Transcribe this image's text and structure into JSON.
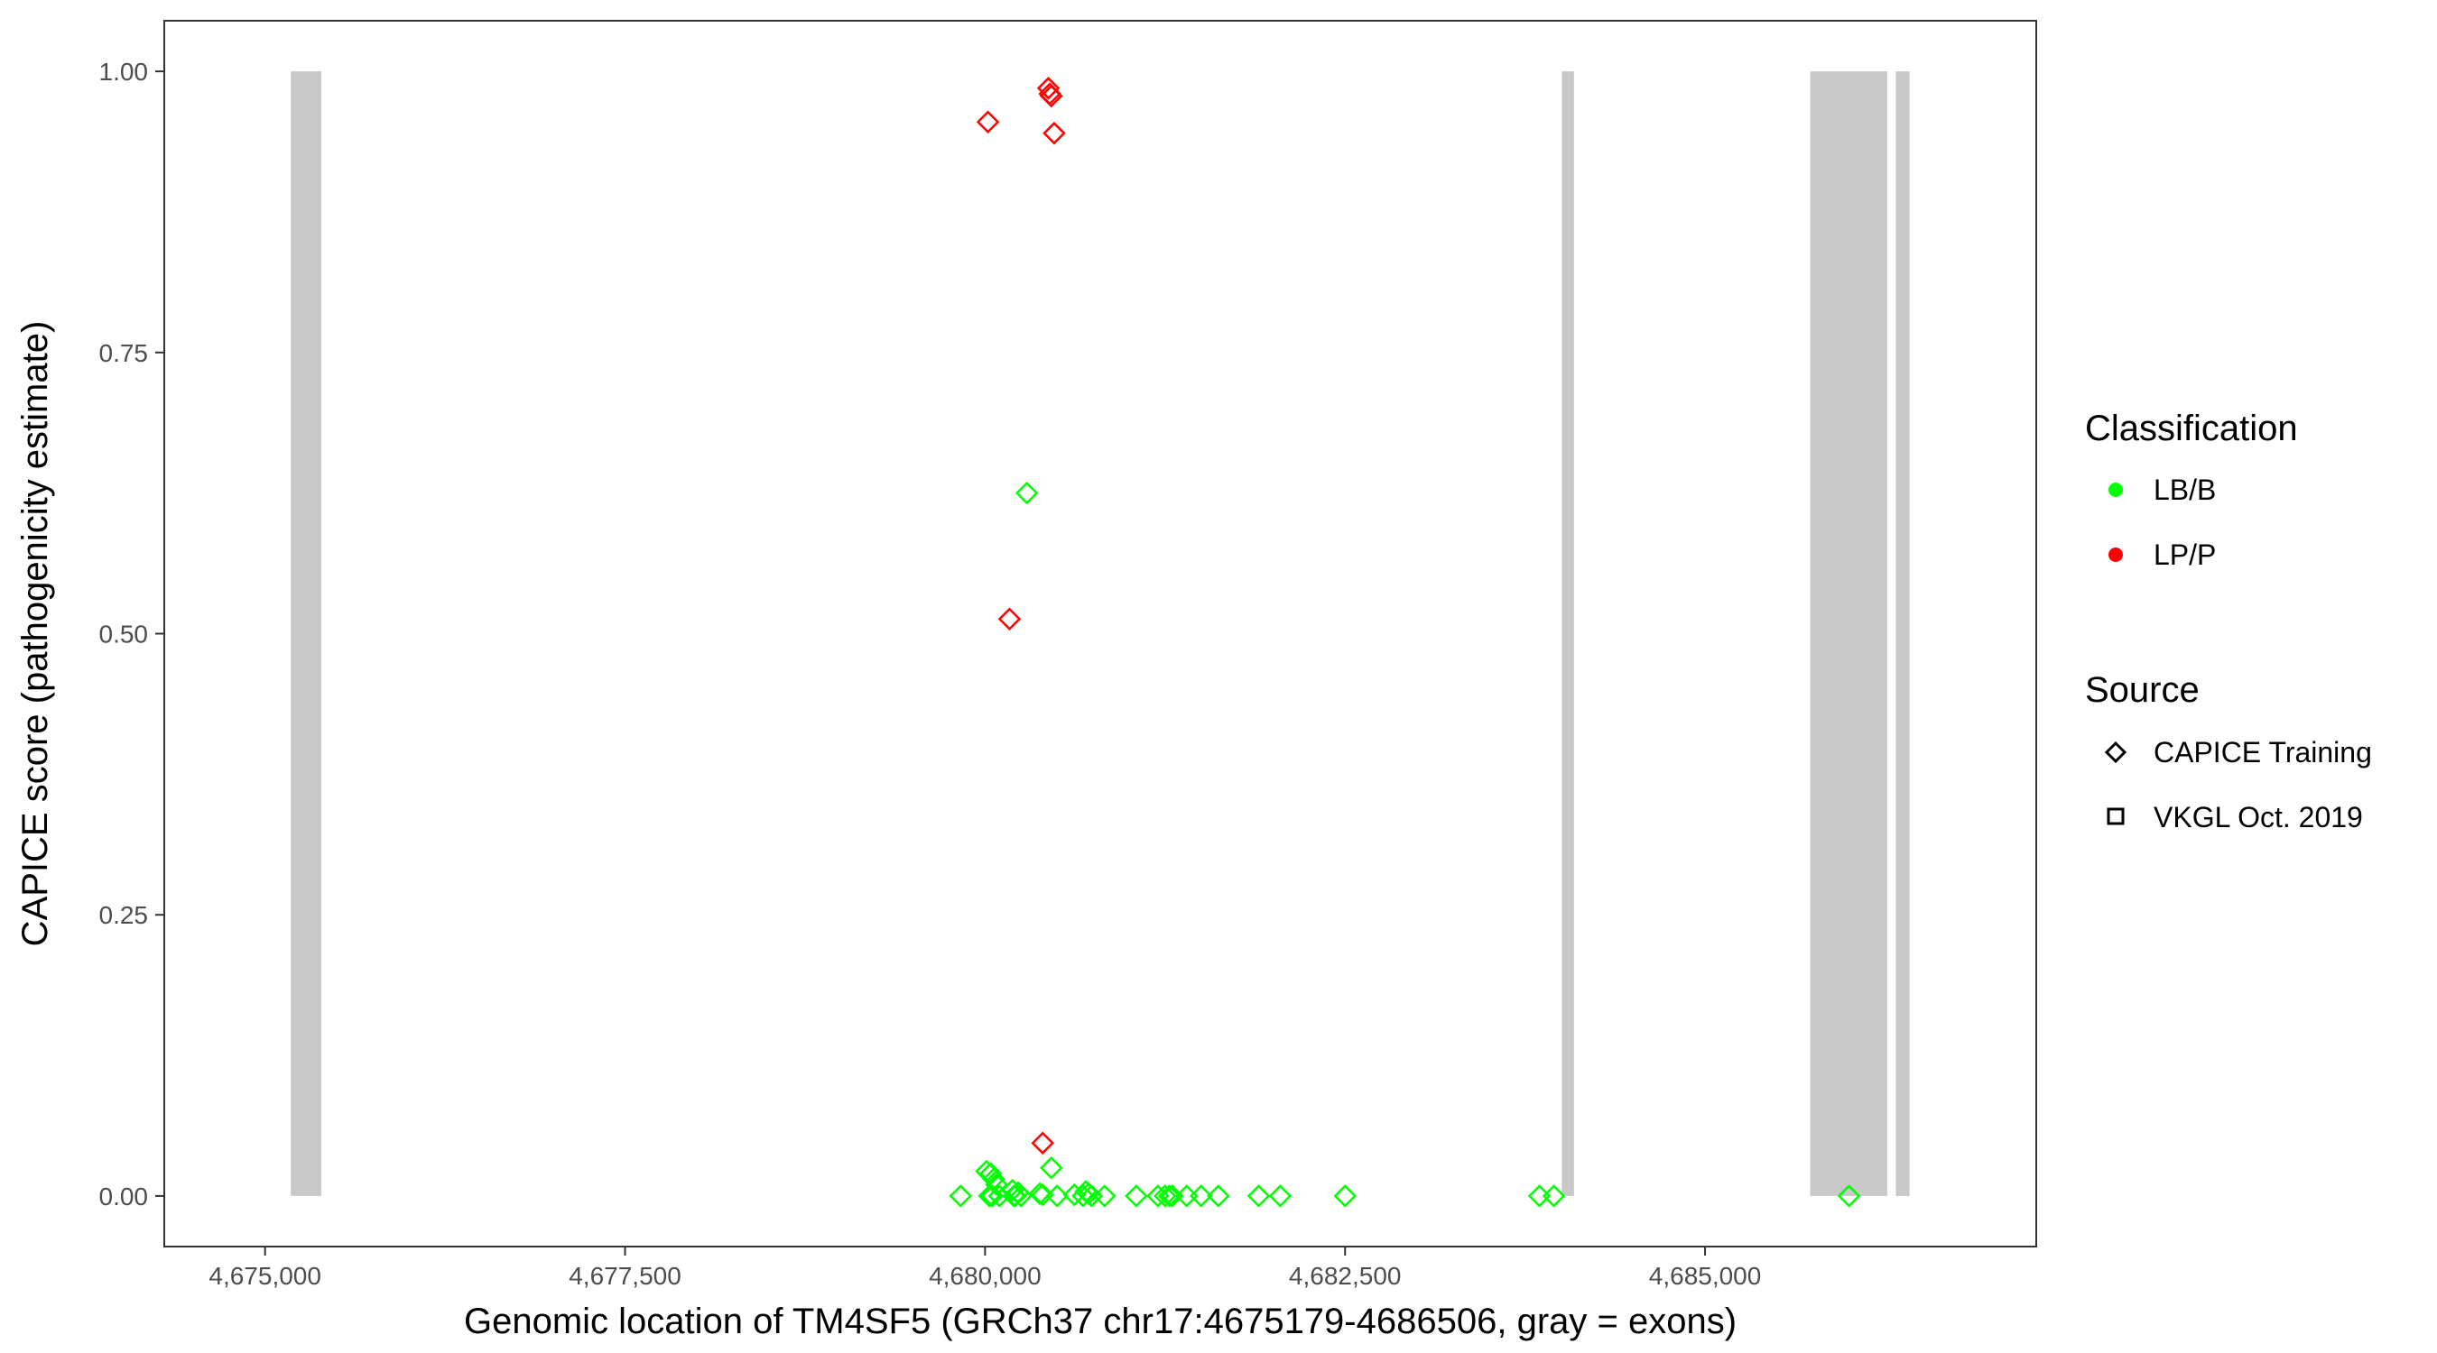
{
  "chart_data": {
    "type": "scatter",
    "title": "",
    "xlabel": "Genomic location of TM4SF5 (GRCh37 chr17:4675179-4686506, gray = exons)",
    "ylabel": "CAPICE score (pathogenicity estimate)",
    "xlim": [
      4674300,
      4687300
    ],
    "ylim": [
      -0.045,
      1.045
    ],
    "x_ticks": [
      4675000,
      4677500,
      4680000,
      4682500,
      4685000
    ],
    "x_tick_labels": [
      "4,675,000",
      "4,677,500",
      "4,680,000",
      "4,682,500",
      "4,685,000"
    ],
    "y_ticks": [
      0,
      0.25,
      0.5,
      0.75,
      1
    ],
    "y_tick_labels": [
      "0.00",
      "0.25",
      "0.50",
      "0.75",
      "1.00"
    ],
    "grid": false,
    "exons": [
      {
        "start": 4675179,
        "end": 4675390
      },
      {
        "start": 4684005,
        "end": 4684090
      },
      {
        "start": 4685730,
        "end": 4686265
      },
      {
        "start": 4686325,
        "end": 4686420
      }
    ],
    "colors": {
      "LB/B": "#00ff00",
      "LP/P": "#ff0000",
      "exon": "#c8c8c8"
    },
    "legend": {
      "placement": "right",
      "classification_title": "Classification",
      "classification_items": [
        "LB/B",
        "LP/P"
      ],
      "source_title": "Source",
      "source_items": [
        "CAPICE Training",
        "VKGL Oct. 2019"
      ]
    },
    "series": [
      {
        "name": "LP/P",
        "source": "CAPICE Training",
        "x": [
          4680440,
          4680450,
          4680460,
          4680020,
          4680480,
          4680170,
          4680400
        ],
        "y": [
          0.985,
          0.98,
          0.978,
          0.955,
          0.945,
          0.513,
          0.047
        ]
      },
      {
        "name": "LB/B",
        "source": "CAPICE Training",
        "x": [
          4680290,
          4679830,
          4680010,
          4680040,
          4680060,
          4680080,
          4680460,
          4680030,
          4680050,
          4680100,
          4680190,
          4680200,
          4680210,
          4680230,
          4680250,
          4680380,
          4680400,
          4680500,
          4680620,
          4680680,
          4680700,
          4680720,
          4680740,
          4680830,
          4681050,
          4681200,
          4681250,
          4681280,
          4681300,
          4681400,
          4681500,
          4681620,
          4681900,
          4682050,
          4682500,
          4683850,
          4683950,
          4686000
        ],
        "y": [
          0.625,
          0,
          0.022,
          0.02,
          0.015,
          0.01,
          0.025,
          0,
          0,
          0,
          0.005,
          0,
          0,
          0.003,
          0,
          0.002,
          0.001,
          0,
          0.001,
          0,
          0.004,
          0.002,
          0,
          0,
          0,
          0,
          0,
          0,
          0,
          0,
          0,
          0,
          0,
          0,
          0,
          0,
          0,
          0
        ]
      }
    ]
  }
}
